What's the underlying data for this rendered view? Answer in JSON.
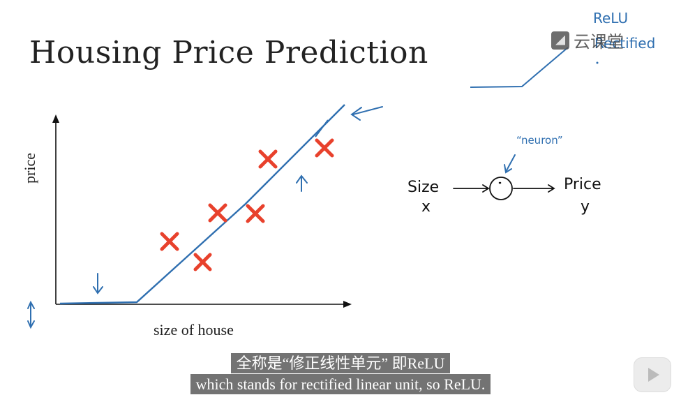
{
  "slide": {
    "title": "Housing Price Prediction",
    "x_axis_label": "size of house",
    "y_axis_label": "price"
  },
  "annotations": {
    "relu_top": "ReLU",
    "relu_bottom": "Rectified",
    "neuron": "“neuron”",
    "input_label": "Size",
    "input_var": "x",
    "output_label": "Price",
    "output_var": "y"
  },
  "watermark": {
    "text": "云课堂"
  },
  "subtitles": {
    "chinese": "全称是“修正线性单元” 即ReLU",
    "english": "which stands for rectified linear unit, so ReLU."
  },
  "colors": {
    "ink": "#2f6fb0",
    "marker": "#e8412c",
    "text": "#222222"
  }
}
